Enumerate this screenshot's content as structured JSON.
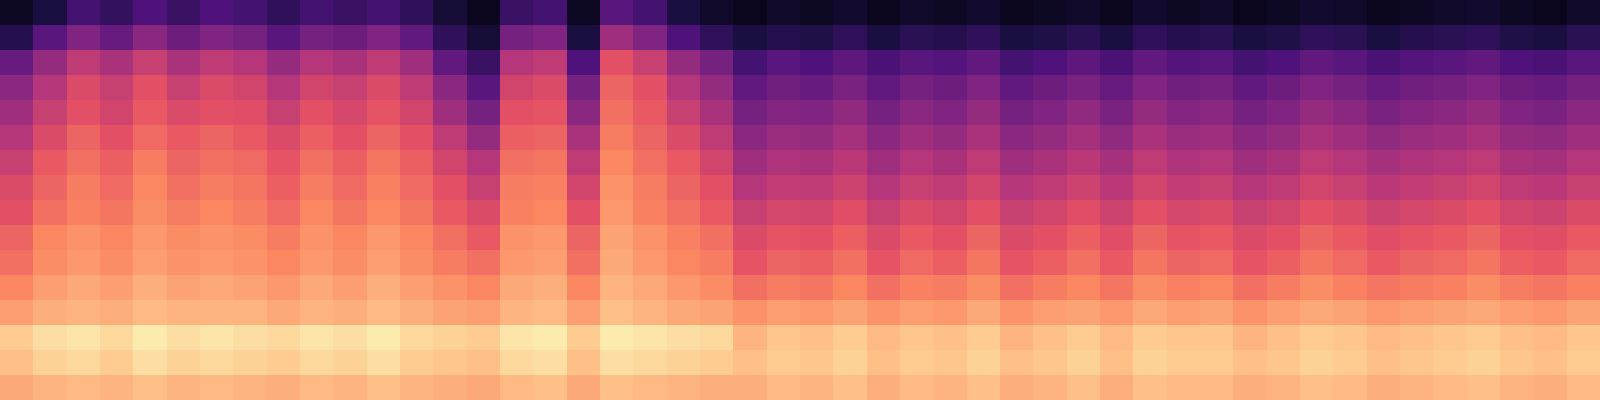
{
  "chart_data": {
    "type": "heatmap",
    "color": "magma",
    "zlim": [
      -80,
      0
    ],
    "tick_labels": false,
    "cells": [
      [
        -75,
        -70,
        -62,
        -65,
        -60,
        -64,
        -60,
        -62,
        -66,
        -62,
        -64,
        -62,
        -66,
        -72,
        -76,
        -64,
        -62,
        -75,
        -58,
        -62,
        -70,
        -74,
        -76,
        -74,
        -75,
        -73,
        -76,
        -74,
        -75,
        -73,
        -76,
        -75,
        -74,
        -76,
        -73,
        -75,
        -74,
        -76,
        -75,
        -73,
        -74,
        -76,
        -75,
        -74,
        -73,
        -75,
        -76,
        -74
      ],
      [
        -68,
        -58,
        -50,
        -55,
        -48,
        -54,
        -50,
        -52,
        -58,
        -52,
        -54,
        -50,
        -56,
        -66,
        -72,
        -52,
        -50,
        -70,
        -44,
        -50,
        -60,
        -66,
        -70,
        -68,
        -69,
        -66,
        -70,
        -67,
        -68,
        -66,
        -70,
        -69,
        -67,
        -70,
        -66,
        -68,
        -67,
        -70,
        -69,
        -66,
        -67,
        -70,
        -68,
        -67,
        -66,
        -69,
        -70,
        -67
      ],
      [
        -55,
        -46,
        -38,
        -42,
        -36,
        -42,
        -38,
        -40,
        -46,
        -40,
        -42,
        -38,
        -44,
        -56,
        -64,
        -40,
        -38,
        -60,
        -30,
        -36,
        -46,
        -52,
        -62,
        -58,
        -60,
        -57,
        -61,
        -58,
        -59,
        -56,
        -62,
        -60,
        -57,
        -61,
        -56,
        -59,
        -58,
        -62,
        -60,
        -56,
        -58,
        -61,
        -59,
        -58,
        -56,
        -60,
        -61,
        -58
      ],
      [
        -48,
        -40,
        -32,
        -36,
        -30,
        -36,
        -32,
        -34,
        -40,
        -34,
        -36,
        -32,
        -38,
        -48,
        -58,
        -34,
        -32,
        -52,
        -26,
        -30,
        -40,
        -46,
        -56,
        -53,
        -55,
        -51,
        -56,
        -52,
        -54,
        -50,
        -56,
        -54,
        -51,
        -55,
        -50,
        -53,
        -52,
        -56,
        -54,
        -50,
        -52,
        -55,
        -53,
        -52,
        -50,
        -54,
        -55,
        -52
      ],
      [
        -44,
        -36,
        -30,
        -34,
        -28,
        -32,
        -30,
        -31,
        -36,
        -30,
        -33,
        -29,
        -34,
        -44,
        -52,
        -30,
        -29,
        -48,
        -24,
        -28,
        -36,
        -42,
        -52,
        -49,
        -50,
        -47,
        -52,
        -48,
        -50,
        -46,
        -52,
        -50,
        -47,
        -51,
        -46,
        -49,
        -48,
        -52,
        -50,
        -46,
        -48,
        -51,
        -49,
        -48,
        -46,
        -50,
        -51,
        -48
      ],
      [
        -40,
        -32,
        -26,
        -30,
        -25,
        -28,
        -26,
        -28,
        -32,
        -27,
        -30,
        -26,
        -30,
        -38,
        -46,
        -27,
        -26,
        -42,
        -22,
        -26,
        -32,
        -38,
        -48,
        -45,
        -46,
        -43,
        -48,
        -44,
        -46,
        -42,
        -48,
        -46,
        -43,
        -47,
        -42,
        -45,
        -44,
        -48,
        -46,
        -42,
        -44,
        -47,
        -45,
        -44,
        -42,
        -46,
        -47,
        -44
      ],
      [
        -36,
        -28,
        -24,
        -27,
        -22,
        -26,
        -24,
        -25,
        -29,
        -24,
        -27,
        -23,
        -27,
        -34,
        -40,
        -24,
        -23,
        -38,
        -20,
        -24,
        -28,
        -34,
        -44,
        -41,
        -42,
        -39,
        -44,
        -40,
        -42,
        -38,
        -44,
        -42,
        -39,
        -43,
        -38,
        -41,
        -40,
        -44,
        -42,
        -38,
        -40,
        -43,
        -41,
        -40,
        -38,
        -42,
        -43,
        -40
      ],
      [
        -32,
        -26,
        -22,
        -25,
        -20,
        -24,
        -22,
        -23,
        -27,
        -22,
        -25,
        -21,
        -25,
        -30,
        -36,
        -22,
        -21,
        -34,
        -18,
        -22,
        -26,
        -30,
        -40,
        -37,
        -38,
        -35,
        -40,
        -36,
        -38,
        -34,
        -40,
        -38,
        -35,
        -39,
        -34,
        -37,
        -36,
        -40,
        -38,
        -34,
        -36,
        -39,
        -37,
        -36,
        -34,
        -38,
        -39,
        -36
      ],
      [
        -30,
        -24,
        -21,
        -23,
        -19,
        -22,
        -20,
        -22,
        -25,
        -20,
        -23,
        -20,
        -23,
        -28,
        -32,
        -21,
        -20,
        -30,
        -17,
        -21,
        -24,
        -28,
        -36,
        -33,
        -34,
        -31,
        -36,
        -32,
        -34,
        -30,
        -36,
        -34,
        -31,
        -35,
        -30,
        -33,
        -32,
        -36,
        -34,
        -30,
        -32,
        -35,
        -33,
        -32,
        -30,
        -34,
        -35,
        -32
      ],
      [
        -26,
        -20,
        -18,
        -20,
        -17,
        -19,
        -18,
        -19,
        -22,
        -18,
        -20,
        -17,
        -20,
        -24,
        -28,
        -18,
        -17,
        -26,
        -15,
        -18,
        -21,
        -24,
        -32,
        -29,
        -30,
        -27,
        -32,
        -28,
        -30,
        -26,
        -32,
        -30,
        -27,
        -31,
        -26,
        -29,
        -28,
        -32,
        -30,
        -26,
        -28,
        -31,
        -29,
        -28,
        -26,
        -30,
        -31,
        -28
      ],
      [
        -24,
        -19,
        -17,
        -19,
        -16,
        -18,
        -17,
        -18,
        -20,
        -17,
        -19,
        -16,
        -19,
        -22,
        -24,
        -17,
        -16,
        -24,
        -14,
        -17,
        -20,
        -22,
        -29,
        -26,
        -27,
        -24,
        -29,
        -25,
        -27,
        -23,
        -29,
        -27,
        -24,
        -28,
        -23,
        -26,
        -25,
        -29,
        -27,
        -23,
        -25,
        -28,
        -26,
        -25,
        -23,
        -27,
        -28,
        -25
      ],
      [
        -20,
        -16,
        -14,
        -16,
        -13,
        -15,
        -14,
        -15,
        -17,
        -14,
        -16,
        -13,
        -16,
        -18,
        -20,
        -14,
        -13,
        -20,
        -12,
        -14,
        -17,
        -19,
        -24,
        -22,
        -23,
        -20,
        -24,
        -21,
        -22,
        -19,
        -24,
        -22,
        -20,
        -23,
        -19,
        -21,
        -20,
        -24,
        -22,
        -19,
        -21,
        -23,
        -22,
        -21,
        -19,
        -22,
        -23,
        -21
      ],
      [
        -16,
        -13,
        -12,
        -13,
        -11,
        -12,
        -12,
        -12,
        -14,
        -12,
        -13,
        -11,
        -13,
        -15,
        -16,
        -12,
        -11,
        -16,
        -10,
        -12,
        -14,
        -15,
        -18,
        -16,
        -17,
        -15,
        -18,
        -16,
        -17,
        -14,
        -18,
        -16,
        -15,
        -17,
        -14,
        -16,
        -15,
        -18,
        -16,
        -14,
        -15,
        -17,
        -16,
        -15,
        -14,
        -16,
        -17,
        -15
      ],
      [
        -8,
        -5,
        -4,
        -6,
        -3,
        -5,
        -4,
        -5,
        -6,
        -4,
        -5,
        -3,
        -6,
        -7,
        -8,
        -4,
        -3,
        -8,
        -3,
        -4,
        -5,
        -6,
        -12,
        -9,
        -10,
        -8,
        -11,
        -9,
        -10,
        -8,
        -12,
        -10,
        -8,
        -11,
        -8,
        -9,
        -9,
        -12,
        -10,
        -8,
        -9,
        -11,
        -10,
        -9,
        -8,
        -10,
        -11,
        -9
      ],
      [
        -10,
        -7,
        -6,
        -8,
        -5,
        -7,
        -6,
        -7,
        -8,
        -6,
        -7,
        -5,
        -8,
        -9,
        -10,
        -6,
        -5,
        -10,
        -5,
        -6,
        -7,
        -8,
        -10,
        -8,
        -9,
        -7,
        -10,
        -8,
        -9,
        -7,
        -10,
        -9,
        -7,
        -10,
        -7,
        -8,
        -8,
        -10,
        -9,
        -7,
        -8,
        -10,
        -9,
        -8,
        -7,
        -9,
        -10,
        -8
      ],
      [
        -14,
        -12,
        -11,
        -12,
        -10,
        -12,
        -11,
        -12,
        -13,
        -11,
        -12,
        -10,
        -12,
        -13,
        -14,
        -11,
        -10,
        -14,
        -10,
        -11,
        -12,
        -13,
        -13,
        -11,
        -12,
        -10,
        -13,
        -11,
        -12,
        -10,
        -13,
        -12,
        -10,
        -13,
        -10,
        -11,
        -11,
        -13,
        -12,
        -10,
        -11,
        -13,
        -12,
        -11,
        -10,
        -12,
        -13,
        -11
      ]
    ]
  }
}
